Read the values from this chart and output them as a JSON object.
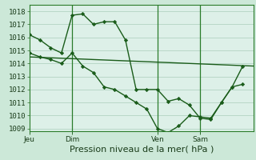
{
  "background_color": "#cce8d8",
  "plot_bg": "#ddf0e8",
  "grid_color": "#aacebb",
  "line_color": "#1a5c1a",
  "ylabel_ticks": [
    1009,
    1010,
    1011,
    1012,
    1013,
    1014,
    1015,
    1016,
    1017,
    1018
  ],
  "ylim": [
    1008.8,
    1018.5
  ],
  "xlabel": "Pression niveau de la mer( hPa )",
  "xlabel_fontsize": 8,
  "tick_fontsize": 6.5,
  "day_labels": [
    "Jeu",
    "Dim",
    "Ven",
    "Sam"
  ],
  "day_positions": [
    0,
    24,
    72,
    96
  ],
  "xlim": [
    0,
    126
  ],
  "line1_x": [
    0,
    6,
    12,
    18,
    24,
    30,
    36,
    42,
    48,
    54,
    60,
    66,
    72,
    78,
    84,
    90,
    96,
    102,
    108,
    114,
    120
  ],
  "line1_y": [
    1016.2,
    1015.8,
    1015.2,
    1014.8,
    1017.7,
    1017.8,
    1017.0,
    1017.2,
    1017.2,
    1015.8,
    1012.0,
    1012.0,
    1012.0,
    1011.1,
    1011.3,
    1010.8,
    1009.8,
    1009.7,
    1011.0,
    1012.2,
    1012.4
  ],
  "line2_x": [
    0,
    6,
    12,
    18,
    24,
    30,
    36,
    42,
    48,
    54,
    60,
    66,
    72,
    78,
    84,
    90,
    96,
    102,
    108,
    114,
    120
  ],
  "line2_y": [
    1014.8,
    1014.5,
    1014.3,
    1014.0,
    1014.8,
    1013.8,
    1013.3,
    1012.2,
    1012.0,
    1011.5,
    1011.0,
    1010.5,
    1009.0,
    1008.7,
    1009.2,
    1010.0,
    1009.9,
    1009.8,
    1011.0,
    1012.2,
    1013.8
  ],
  "line3_x": [
    0,
    126
  ],
  "line3_y": [
    1014.5,
    1013.8
  ],
  "vline_positions": [
    24,
    72,
    96
  ]
}
